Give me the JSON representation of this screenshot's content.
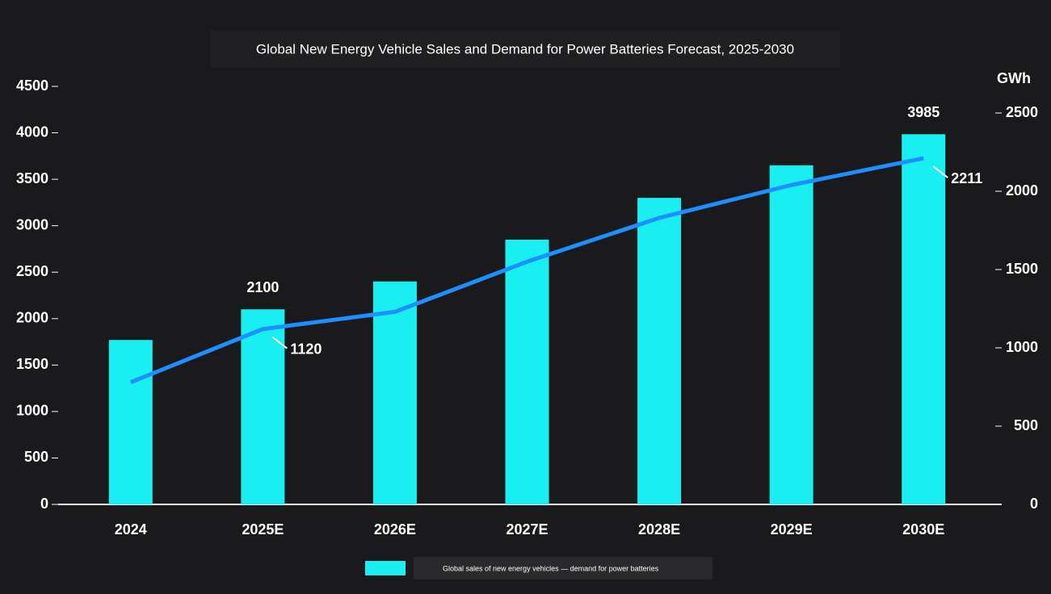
{
  "chart_data": {
    "type": "bar-line",
    "title": "Global New Energy Vehicle Sales and Demand for Power Batteries Forecast, 2025-2030",
    "y2_label": "GWh",
    "categories": [
      "2024",
      "2025E",
      "2026E",
      "2027E",
      "2028E",
      "2029E",
      "2030E"
    ],
    "series": [
      {
        "name": "Global sales of new energy vehicles — demand for power batteries",
        "type": "bar",
        "color": "#19eef0",
        "values": [
          1770,
          2100,
          2400,
          2850,
          3300,
          3650,
          3985
        ],
        "value_labels": [
          null,
          "2100",
          null,
          null,
          null,
          null,
          "3985"
        ]
      },
      {
        "type": "line",
        "axis": "y2",
        "color": "#1e8fff",
        "values": [
          780,
          1120,
          1230,
          1550,
          1830,
          2040,
          2211
        ],
        "value_labels": [
          null,
          "1120",
          null,
          null,
          null,
          null,
          "2211"
        ]
      }
    ],
    "ylim": [
      0,
      4500
    ],
    "yticks": [
      0,
      500,
      1000,
      1500,
      2000,
      2500,
      3000,
      3500,
      4000,
      4500
    ],
    "y2lim": [
      0,
      2500
    ],
    "y2ticks": [
      0,
      500,
      1000,
      1500,
      2000,
      2500
    ],
    "legend": "bottom"
  }
}
